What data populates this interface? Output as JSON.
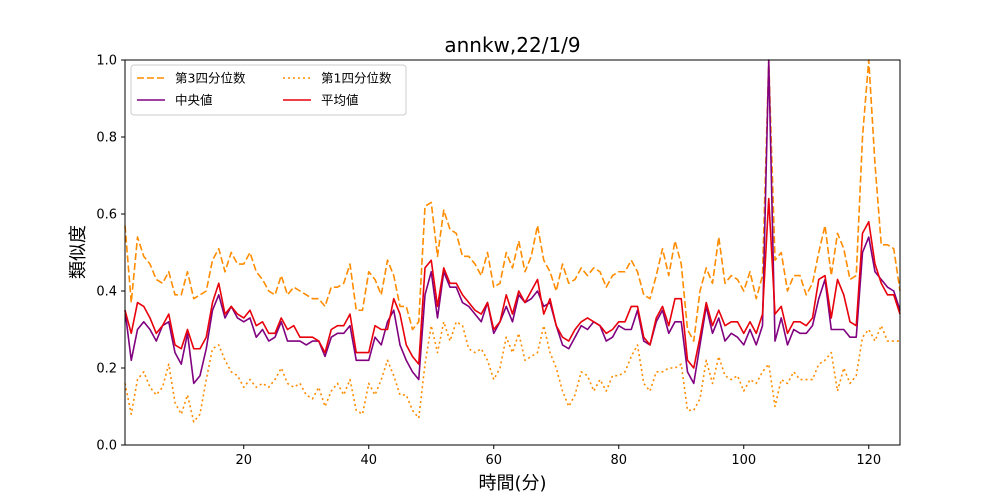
{
  "chart_data": {
    "type": "line",
    "title": "annkw,22/1/9",
    "xlabel": "時間(分)",
    "ylabel": "類似度",
    "xlim": [
      1,
      125
    ],
    "ylim": [
      0,
      1
    ],
    "xticks": [
      20,
      40,
      60,
      80,
      100,
      120
    ],
    "yticks": [
      "0.0",
      "0.2",
      "0.4",
      "0.6",
      "0.8",
      "1.0"
    ],
    "grid": false,
    "legend_position": "top-left",
    "x_start": 1,
    "series": [
      {
        "name": "第3四分位数",
        "color": "#ff8c00",
        "style": "dashed",
        "values": [
          0.57,
          0.37,
          0.54,
          0.49,
          0.47,
          0.43,
          0.42,
          0.45,
          0.39,
          0.39,
          0.45,
          0.38,
          0.39,
          0.4,
          0.48,
          0.51,
          0.45,
          0.5,
          0.47,
          0.47,
          0.5,
          0.45,
          0.43,
          0.4,
          0.39,
          0.44,
          0.39,
          0.41,
          0.4,
          0.39,
          0.38,
          0.38,
          0.36,
          0.41,
          0.41,
          0.42,
          0.47,
          0.35,
          0.35,
          0.45,
          0.43,
          0.39,
          0.48,
          0.44,
          0.36,
          0.36,
          0.3,
          0.32,
          0.62,
          0.63,
          0.49,
          0.61,
          0.56,
          0.55,
          0.49,
          0.49,
          0.47,
          0.44,
          0.5,
          0.41,
          0.42,
          0.5,
          0.46,
          0.53,
          0.45,
          0.49,
          0.57,
          0.48,
          0.45,
          0.4,
          0.47,
          0.42,
          0.43,
          0.46,
          0.44,
          0.46,
          0.45,
          0.41,
          0.44,
          0.45,
          0.45,
          0.48,
          0.45,
          0.39,
          0.38,
          0.44,
          0.51,
          0.44,
          0.53,
          0.47,
          0.3,
          0.27,
          0.4,
          0.46,
          0.42,
          0.54,
          0.42,
          0.44,
          0.43,
          0.4,
          0.45,
          0.38,
          0.44,
          1.0,
          0.48,
          0.5,
          0.4,
          0.44,
          0.44,
          0.39,
          0.42,
          0.5,
          0.57,
          0.44,
          0.55,
          0.51,
          0.43,
          0.44,
          0.8,
          1.0,
          0.73,
          0.52,
          0.52,
          0.51,
          0.4
        ]
      },
      {
        "name": "第1四分位数",
        "color": "#ff8c00",
        "style": "dotted",
        "values": [
          0.16,
          0.08,
          0.17,
          0.19,
          0.15,
          0.13,
          0.15,
          0.21,
          0.11,
          0.08,
          0.13,
          0.06,
          0.08,
          0.17,
          0.25,
          0.26,
          0.22,
          0.19,
          0.18,
          0.15,
          0.17,
          0.15,
          0.16,
          0.15,
          0.17,
          0.2,
          0.16,
          0.15,
          0.16,
          0.13,
          0.12,
          0.15,
          0.1,
          0.14,
          0.16,
          0.13,
          0.17,
          0.09,
          0.08,
          0.16,
          0.13,
          0.17,
          0.22,
          0.18,
          0.13,
          0.13,
          0.09,
          0.07,
          0.21,
          0.31,
          0.24,
          0.32,
          0.27,
          0.32,
          0.31,
          0.25,
          0.24,
          0.25,
          0.22,
          0.17,
          0.2,
          0.28,
          0.24,
          0.29,
          0.22,
          0.23,
          0.24,
          0.31,
          0.24,
          0.2,
          0.14,
          0.1,
          0.13,
          0.19,
          0.18,
          0.14,
          0.17,
          0.14,
          0.18,
          0.18,
          0.19,
          0.23,
          0.26,
          0.16,
          0.14,
          0.19,
          0.19,
          0.2,
          0.2,
          0.21,
          0.09,
          0.09,
          0.12,
          0.22,
          0.16,
          0.23,
          0.18,
          0.17,
          0.18,
          0.14,
          0.17,
          0.16,
          0.19,
          0.21,
          0.1,
          0.17,
          0.16,
          0.19,
          0.17,
          0.17,
          0.17,
          0.21,
          0.22,
          0.24,
          0.14,
          0.2,
          0.16,
          0.18,
          0.28,
          0.3,
          0.27,
          0.31,
          0.27,
          0.27,
          0.27
        ]
      },
      {
        "name": "中央値",
        "color": "#800080",
        "style": "solid",
        "values": [
          0.35,
          0.22,
          0.3,
          0.32,
          0.3,
          0.27,
          0.31,
          0.32,
          0.24,
          0.21,
          0.29,
          0.16,
          0.18,
          0.25,
          0.35,
          0.39,
          0.33,
          0.36,
          0.33,
          0.32,
          0.33,
          0.28,
          0.3,
          0.27,
          0.28,
          0.32,
          0.27,
          0.27,
          0.27,
          0.26,
          0.27,
          0.27,
          0.23,
          0.28,
          0.29,
          0.29,
          0.31,
          0.22,
          0.22,
          0.22,
          0.28,
          0.26,
          0.32,
          0.35,
          0.26,
          0.22,
          0.19,
          0.17,
          0.39,
          0.45,
          0.33,
          0.45,
          0.41,
          0.41,
          0.37,
          0.36,
          0.34,
          0.32,
          0.37,
          0.29,
          0.32,
          0.36,
          0.32,
          0.39,
          0.37,
          0.38,
          0.4,
          0.36,
          0.37,
          0.31,
          0.26,
          0.25,
          0.28,
          0.31,
          0.3,
          0.32,
          0.31,
          0.27,
          0.28,
          0.31,
          0.3,
          0.3,
          0.35,
          0.27,
          0.26,
          0.32,
          0.35,
          0.29,
          0.32,
          0.32,
          0.19,
          0.16,
          0.26,
          0.36,
          0.29,
          0.33,
          0.27,
          0.29,
          0.28,
          0.26,
          0.3,
          0.26,
          0.31,
          1.0,
          0.27,
          0.33,
          0.26,
          0.3,
          0.29,
          0.29,
          0.31,
          0.38,
          0.43,
          0.3,
          0.3,
          0.3,
          0.28,
          0.28,
          0.5,
          0.54,
          0.45,
          0.43,
          0.41,
          0.4,
          0.35
        ]
      },
      {
        "name": "平均値",
        "color": "#e8000b",
        "style": "solid",
        "values": [
          0.35,
          0.29,
          0.37,
          0.36,
          0.33,
          0.29,
          0.31,
          0.34,
          0.26,
          0.25,
          0.3,
          0.25,
          0.25,
          0.28,
          0.37,
          0.42,
          0.34,
          0.36,
          0.34,
          0.33,
          0.35,
          0.31,
          0.32,
          0.29,
          0.29,
          0.33,
          0.3,
          0.31,
          0.28,
          0.28,
          0.28,
          0.27,
          0.24,
          0.3,
          0.31,
          0.31,
          0.34,
          0.24,
          0.24,
          0.24,
          0.31,
          0.3,
          0.3,
          0.38,
          0.34,
          0.26,
          0.23,
          0.21,
          0.46,
          0.48,
          0.36,
          0.46,
          0.42,
          0.42,
          0.39,
          0.37,
          0.35,
          0.34,
          0.37,
          0.3,
          0.32,
          0.39,
          0.34,
          0.4,
          0.37,
          0.4,
          0.43,
          0.34,
          0.38,
          0.31,
          0.28,
          0.27,
          0.3,
          0.32,
          0.33,
          0.32,
          0.31,
          0.29,
          0.3,
          0.32,
          0.32,
          0.36,
          0.36,
          0.28,
          0.26,
          0.33,
          0.36,
          0.31,
          0.38,
          0.38,
          0.22,
          0.2,
          0.28,
          0.37,
          0.31,
          0.35,
          0.31,
          0.32,
          0.32,
          0.29,
          0.32,
          0.29,
          0.34,
          0.64,
          0.34,
          0.36,
          0.29,
          0.32,
          0.32,
          0.31,
          0.33,
          0.43,
          0.44,
          0.33,
          0.43,
          0.39,
          0.32,
          0.31,
          0.55,
          0.58,
          0.47,
          0.42,
          0.39,
          0.39,
          0.34
        ]
      }
    ]
  }
}
